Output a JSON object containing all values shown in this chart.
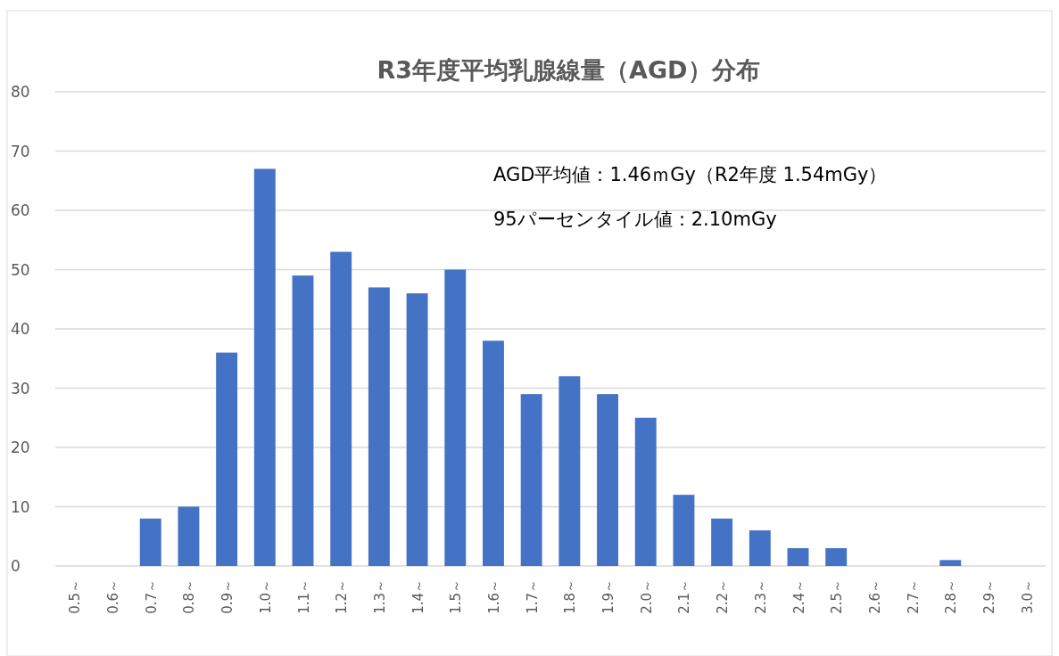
{
  "chart_data": {
    "type": "bar",
    "title": "R3年度平均乳腺線量（AGD）分布",
    "categories": [
      "0.5～",
      "0.6～",
      "0.7～",
      "0.8～",
      "0.9～",
      "1.0～",
      "1.1～",
      "1.2～",
      "1.3～",
      "1.4～",
      "1.5～",
      "1.6～",
      "1.7～",
      "1.8～",
      "1.9～",
      "2.0～",
      "2.1～",
      "2.2～",
      "2.3～",
      "2.4～",
      "2.5～",
      "2.6～",
      "2.7～",
      "2.8～",
      "2.9～",
      "3.0～"
    ],
    "values": [
      0,
      0,
      8,
      10,
      36,
      67,
      49,
      53,
      47,
      46,
      50,
      38,
      29,
      32,
      29,
      25,
      12,
      8,
      6,
      3,
      3,
      0,
      0,
      1,
      0,
      0
    ],
    "color": "#4472c4",
    "ylim": [
      0,
      80
    ],
    "yticks": [
      0,
      10,
      20,
      30,
      40,
      50,
      60,
      70,
      80
    ],
    "grid": "y",
    "annotations": [
      "AGD平均値：1.46ｍGy（R2年度 1.54mGy）",
      "95パーセンタイル値：2.10mGy"
    ]
  }
}
